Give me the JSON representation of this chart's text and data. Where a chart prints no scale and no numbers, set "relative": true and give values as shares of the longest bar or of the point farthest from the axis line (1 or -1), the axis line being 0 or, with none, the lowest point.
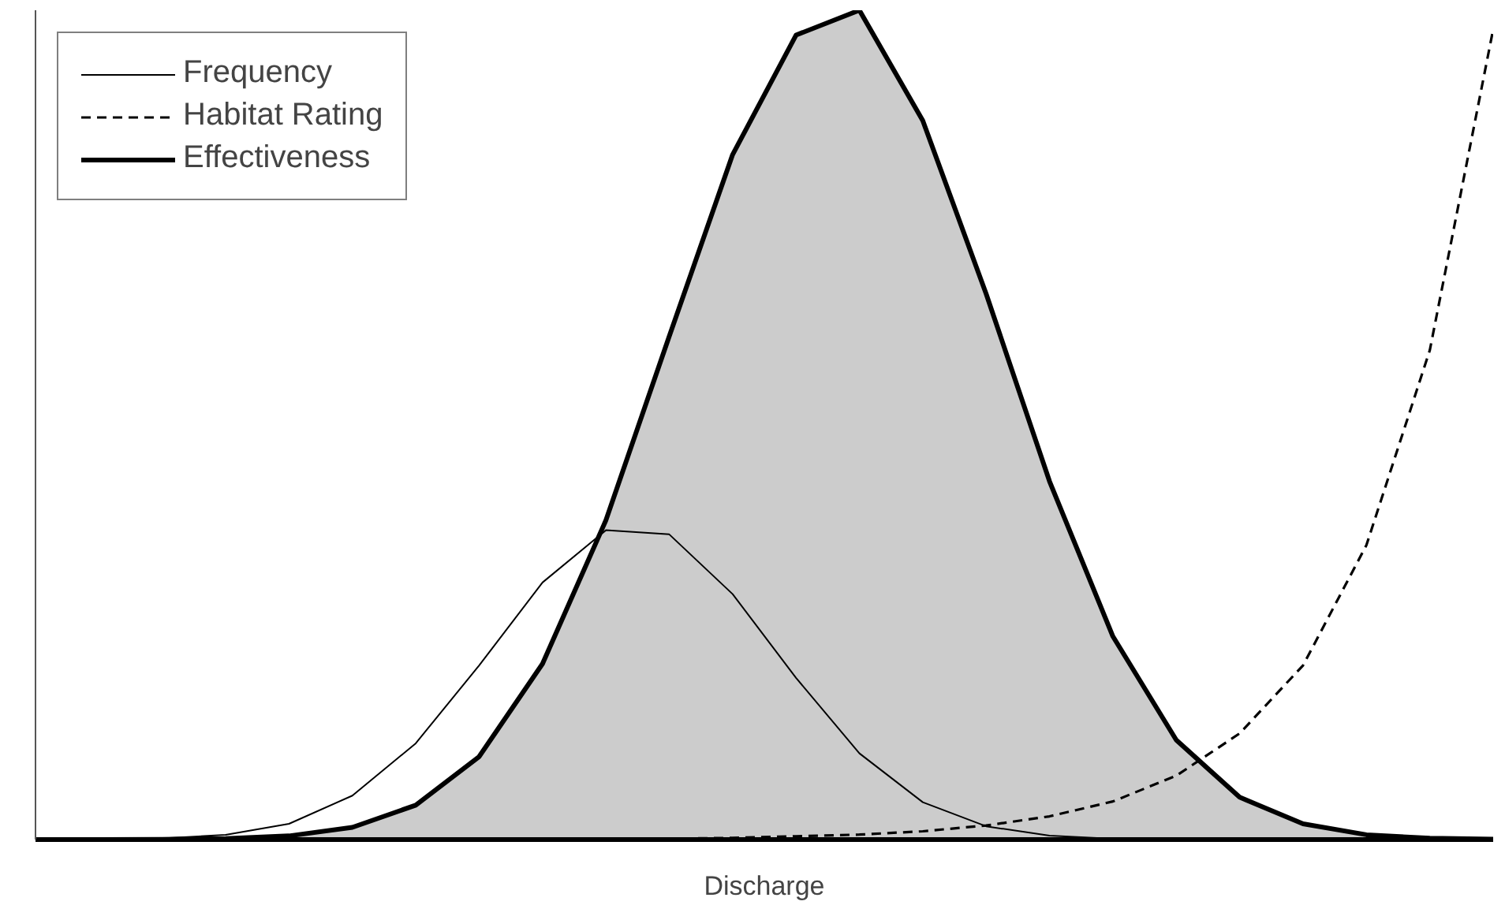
{
  "chart_data": {
    "type": "line",
    "relative": true,
    "xlabel": "Discharge",
    "legend": "top left",
    "categories": [
      null,
      null,
      null,
      null,
      null,
      null,
      null,
      null,
      null,
      null,
      null,
      null,
      null,
      null,
      null,
      null,
      null,
      null,
      null,
      null,
      null,
      null,
      null,
      null
    ],
    "series": [
      {
        "name": "Frequency",
        "type": "line",
        "line_style": "solid",
        "color": "#000000",
        "values": [
          0,
          0.0003,
          0.0014,
          0.0057,
          0.019,
          0.053,
          0.116,
          0.21,
          0.31,
          0.373,
          0.368,
          0.296,
          0.195,
          0.104,
          0.045,
          0.016,
          0.0047,
          0.001,
          0,
          0,
          0,
          0,
          0,
          0
        ]
      },
      {
        "name": "Habitat Rating",
        "type": "line",
        "line_style": "dashed",
        "color": "#000000",
        "values": [
          0,
          0,
          0,
          0,
          0,
          0,
          0,
          0,
          0,
          0,
          0.001,
          0.002,
          0.004,
          0.006,
          0.01,
          0.017,
          0.028,
          0.046,
          0.077,
          0.128,
          0.21,
          0.355,
          0.59,
          0.977
        ]
      },
      {
        "name": "Effectiveness",
        "type": "area",
        "line_style": "solid",
        "color": "#cccccc",
        "values": [
          0,
          0,
          0.0003,
          0.0012,
          0.0044,
          0.0147,
          0.0415,
          0.1,
          0.212,
          0.385,
          0.607,
          0.826,
          0.97,
          1,
          0.867,
          0.658,
          0.432,
          0.245,
          0.12,
          0.051,
          0.019,
          0.0058,
          0.0016,
          0.0004
        ]
      }
    ]
  }
}
